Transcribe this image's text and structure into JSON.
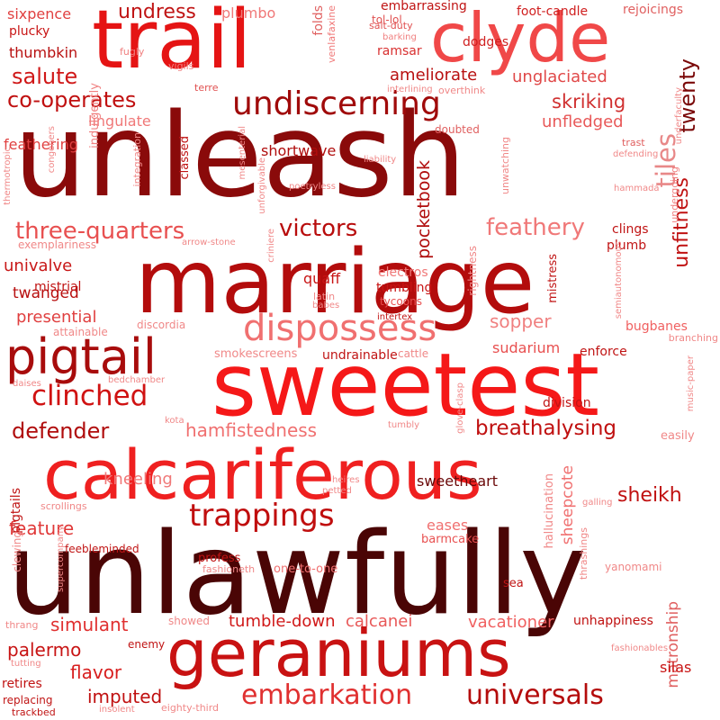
{
  "words": [
    {
      "text": "unlawfully",
      "color": "#4a0505"
    },
    {
      "text": "unleash",
      "color": "#8a0a0a"
    },
    {
      "text": "marriage",
      "color": "#b30c0c"
    },
    {
      "text": "sweetest",
      "color": "#f51818"
    },
    {
      "text": "calcariferous",
      "color": "#ef2020"
    },
    {
      "text": "trail",
      "color": "#e51414"
    },
    {
      "text": "clyde",
      "color": "#f04848"
    },
    {
      "text": "geraniums",
      "color": "#c81212"
    },
    {
      "text": "pigtail",
      "color": "#a80c0c"
    },
    {
      "text": "dispossess",
      "color": "#f07070"
    },
    {
      "text": "undiscerning",
      "color": "#a00a0a"
    },
    {
      "text": "trappings",
      "color": "#c00e0e"
    },
    {
      "text": "embarkation",
      "color": "#e03030"
    },
    {
      "text": "universals",
      "color": "#b40c0c"
    },
    {
      "text": "clinched",
      "color": "#d01212"
    },
    {
      "text": "three-quarters",
      "color": "#e85050"
    },
    {
      "text": "victors",
      "color": "#b80c0c"
    },
    {
      "text": "feathery",
      "color": "#f07878"
    },
    {
      "text": "defender",
      "color": "#b00c0c"
    },
    {
      "text": "breathalysing",
      "color": "#c01010"
    },
    {
      "text": "hamfistedness",
      "color": "#f07070"
    },
    {
      "text": "co-operates",
      "color": "#c01010"
    },
    {
      "text": "salute",
      "color": "#d01818"
    },
    {
      "text": "undress",
      "color": "#c01414"
    },
    {
      "text": "twenty",
      "color": "#7a0808"
    },
    {
      "text": "tiles",
      "color": "#e88888"
    },
    {
      "text": "unfitness",
      "color": "#c01212"
    },
    {
      "text": "skriking",
      "color": "#d03030"
    },
    {
      "text": "unfledged",
      "color": "#e85858"
    },
    {
      "text": "unglaciated",
      "color": "#e04848"
    },
    {
      "text": "ameliorate",
      "color": "#b81010"
    },
    {
      "text": "sheikh",
      "color": "#c01010"
    },
    {
      "text": "sweetheart",
      "color": "#6a0808"
    },
    {
      "text": "feature",
      "color": "#e03838"
    },
    {
      "text": "kneeling",
      "color": "#f07878"
    },
    {
      "text": "simulant",
      "color": "#e03030"
    },
    {
      "text": "palermo",
      "color": "#c81414"
    },
    {
      "text": "flavor",
      "color": "#d81e1e"
    },
    {
      "text": "imputed",
      "color": "#c01010"
    },
    {
      "text": "tumble-down",
      "color": "#d01818"
    },
    {
      "text": "calcanei",
      "color": "#e85858"
    },
    {
      "text": "vacationer",
      "color": "#f06060"
    },
    {
      "text": "univalve",
      "color": "#c81818"
    },
    {
      "text": "twanged",
      "color": "#b81010"
    },
    {
      "text": "presential",
      "color": "#e04040"
    },
    {
      "text": "sopper",
      "color": "#f08080"
    },
    {
      "text": "sudarium",
      "color": "#e85050"
    },
    {
      "text": "pocketbook",
      "color": "#b00c0c"
    },
    {
      "text": "matronship",
      "color": "#e06060"
    },
    {
      "text": "silas",
      "color": "#c81414"
    },
    {
      "text": "sheepcote",
      "color": "#f07070"
    },
    {
      "text": "shortwave",
      "color": "#b00c0c"
    },
    {
      "text": "lingulate",
      "color": "#f07878"
    },
    {
      "text": "feathering",
      "color": "#e04040"
    },
    {
      "text": "thumbkin",
      "color": "#b81010"
    },
    {
      "text": "sixpence",
      "color": "#e04040"
    },
    {
      "text": "plucky",
      "color": "#c81414"
    },
    {
      "text": "embarrassing",
      "color": "#c01414"
    },
    {
      "text": "foot-candle",
      "color": "#d02020"
    },
    {
      "text": "rejoicings",
      "color": "#e06060"
    },
    {
      "text": "dodges",
      "color": "#d02020"
    },
    {
      "text": "ramsar",
      "color": "#d83030"
    },
    {
      "text": "plumbo",
      "color": "#f07878"
    },
    {
      "text": "unhappiness",
      "color": "#c01010"
    },
    {
      "text": "bugbanes",
      "color": "#f06060"
    },
    {
      "text": "enforce",
      "color": "#c01414"
    },
    {
      "text": "division",
      "color": "#c01414"
    },
    {
      "text": "undrainable",
      "color": "#c01414"
    },
    {
      "text": "clings",
      "color": "#c01414"
    },
    {
      "text": "plumb",
      "color": "#c01414"
    },
    {
      "text": "eases",
      "color": "#f07070"
    },
    {
      "text": "barmcake",
      "color": "#e85050"
    },
    {
      "text": "tumbling",
      "color": "#c81414"
    },
    {
      "text": "quaff",
      "color": "#c81414"
    },
    {
      "text": "electros",
      "color": "#f07878"
    },
    {
      "text": "tycoons",
      "color": "#e85050"
    },
    {
      "text": "retires",
      "color": "#c01414"
    },
    {
      "text": "pigtails",
      "color": "#c01414"
    },
    {
      "text": "folds",
      "color": "#e06060"
    },
    {
      "text": "venlafaxine",
      "color": "#f07878"
    },
    {
      "text": "tol-lol",
      "color": "#e05050"
    },
    {
      "text": "salt-duty",
      "color": "#e05050"
    },
    {
      "text": "barking",
      "color": "#f08080"
    },
    {
      "text": "fugly",
      "color": "#f08080"
    },
    {
      "text": "vigils",
      "color": "#f08080"
    },
    {
      "text": "terre",
      "color": "#e05050"
    },
    {
      "text": "interlining",
      "color": "#f08888"
    },
    {
      "text": "overthink",
      "color": "#f08888"
    },
    {
      "text": "doubted",
      "color": "#e06060"
    },
    {
      "text": "trast",
      "color": "#e06060"
    },
    {
      "text": "defending",
      "color": "#f08888"
    },
    {
      "text": "underfaculty",
      "color": "#f08888"
    },
    {
      "text": "hammada",
      "color": "#f08888"
    },
    {
      "text": "liability",
      "color": "#f08888"
    },
    {
      "text": "poetryless",
      "color": "#f08888"
    },
    {
      "text": "unwatching",
      "color": "#f08888"
    },
    {
      "text": "undergoing",
      "color": "#f08080"
    },
    {
      "text": "classed",
      "color": "#c01414"
    },
    {
      "text": "indulgently",
      "color": "#f08080"
    },
    {
      "text": "integration",
      "color": "#f08888"
    },
    {
      "text": "unforgivable",
      "color": "#f08888"
    },
    {
      "text": "mesenterial",
      "color": "#f08888"
    },
    {
      "text": "congeners",
      "color": "#f08888"
    },
    {
      "text": "thermotropic",
      "color": "#f08888"
    },
    {
      "text": "exemplariness",
      "color": "#f08888"
    },
    {
      "text": "arrow-stone",
      "color": "#f08888"
    },
    {
      "text": "criniere",
      "color": "#f08888"
    },
    {
      "text": "rightness",
      "color": "#f08888"
    },
    {
      "text": "mistress",
      "color": "#c01414"
    },
    {
      "text": "semiautonomous",
      "color": "#f08888"
    },
    {
      "text": "branching",
      "color": "#f08888"
    },
    {
      "text": "latin",
      "color": "#f08888"
    },
    {
      "text": "babes",
      "color": "#f08888"
    },
    {
      "text": "intertex",
      "color": "#c01414"
    },
    {
      "text": "mistrial",
      "color": "#c01414"
    },
    {
      "text": "discordia",
      "color": "#f08888"
    },
    {
      "text": "attainable",
      "color": "#f08888"
    },
    {
      "text": "smokescreens",
      "color": "#f08888"
    },
    {
      "text": "cattle",
      "color": "#f08888"
    },
    {
      "text": "daises",
      "color": "#f08888"
    },
    {
      "text": "bedchamber",
      "color": "#f08888"
    },
    {
      "text": "kota",
      "color": "#f08888"
    },
    {
      "text": "glove-clasp",
      "color": "#f08888"
    },
    {
      "text": "music-paper",
      "color": "#f08888"
    },
    {
      "text": "tumbly",
      "color": "#f08888"
    },
    {
      "text": "easily",
      "color": "#f08888"
    },
    {
      "text": "heires",
      "color": "#f08888"
    },
    {
      "text": "petted",
      "color": "#f08888"
    },
    {
      "text": "scrollings",
      "color": "#f08888"
    },
    {
      "text": "galling",
      "color": "#f08888"
    },
    {
      "text": "feebleminded",
      "color": "#c01414"
    },
    {
      "text": "profess",
      "color": "#c01414"
    },
    {
      "text": "one-to-one",
      "color": "#f07070"
    },
    {
      "text": "clewing",
      "color": "#f08888"
    },
    {
      "text": "supercompany",
      "color": "#f08888"
    },
    {
      "text": "fashioneth",
      "color": "#f08888"
    },
    {
      "text": "hallucination",
      "color": "#f08888"
    },
    {
      "text": "thrashings",
      "color": "#f08888"
    },
    {
      "text": "yanomami",
      "color": "#f08888"
    },
    {
      "text": "sea",
      "color": "#c01414"
    },
    {
      "text": "thrang",
      "color": "#f08888"
    },
    {
      "text": "showed",
      "color": "#f08888"
    },
    {
      "text": "enemy",
      "color": "#c01414"
    },
    {
      "text": "tutting",
      "color": "#f08888"
    },
    {
      "text": "replacing",
      "color": "#c01414"
    },
    {
      "text": "trackbed",
      "color": "#c01414"
    },
    {
      "text": "insolent",
      "color": "#f08888"
    },
    {
      "text": "eighty-third",
      "color": "#f08888"
    },
    {
      "text": "fashionables",
      "color": "#f08888"
    }
  ]
}
